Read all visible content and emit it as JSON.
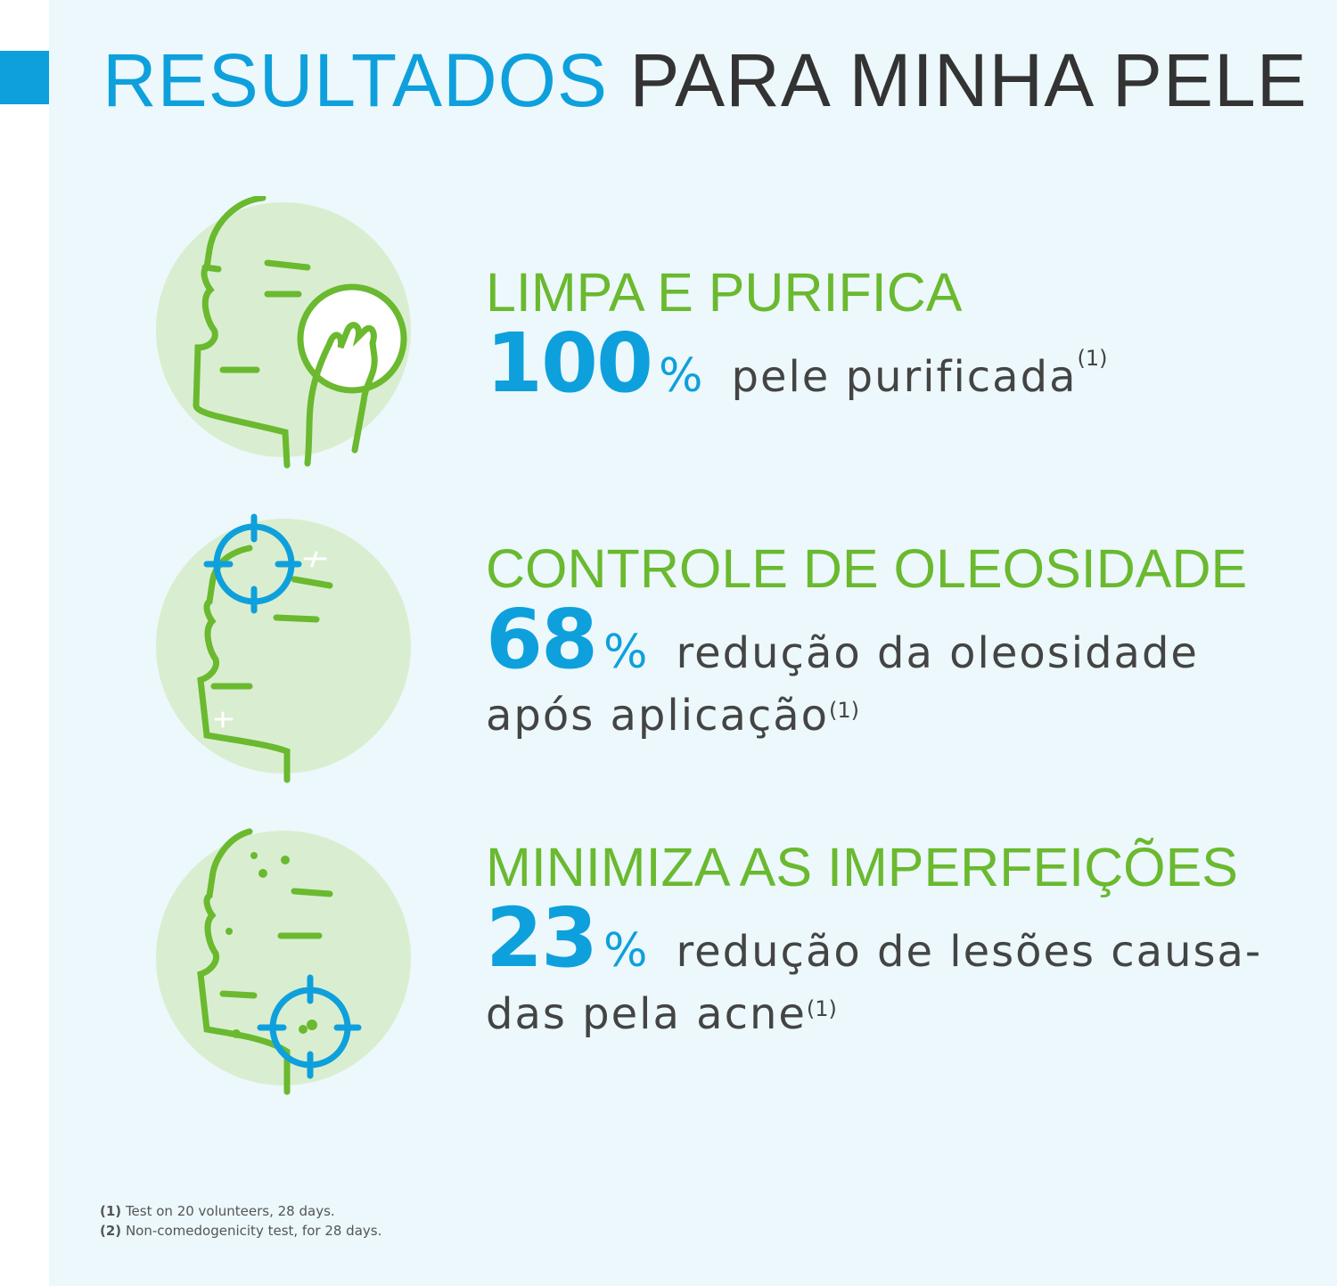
{
  "title": {
    "part1": "RESULTADOS",
    "part2": "PARA MINHA PELE"
  },
  "colors": {
    "blue": "#0ea0dc",
    "green": "#6ab92f",
    "background": "#ecf8fb",
    "text": "#444444"
  },
  "results": [
    {
      "icon": "face-cleansing-pad-icon",
      "heading": "LIMPA E PURIFICA",
      "number": "100",
      "unit": "%",
      "text": "pele purificada",
      "text2": "",
      "ref": "(1)"
    },
    {
      "icon": "face-oil-target-icon",
      "heading": "CONTROLE DE OLEOSIDADE",
      "number": "68",
      "unit": "%",
      "text": "redução da oleosidade",
      "text2": "após aplicação",
      "ref": "(1)"
    },
    {
      "icon": "face-blemish-target-icon",
      "heading": "MINIMIZA AS IMPERFEIÇÕES",
      "number": "23",
      "unit": "%",
      "text": "redução de lesões causa-",
      "text2": "das pela acne",
      "ref": "(1)"
    }
  ],
  "footnotes": [
    {
      "ref": "(1)",
      "text": "Test on 20 volunteers, 28 days."
    },
    {
      "ref": "(2)",
      "text": "Non-comedogenicity test, for 28 days."
    }
  ]
}
